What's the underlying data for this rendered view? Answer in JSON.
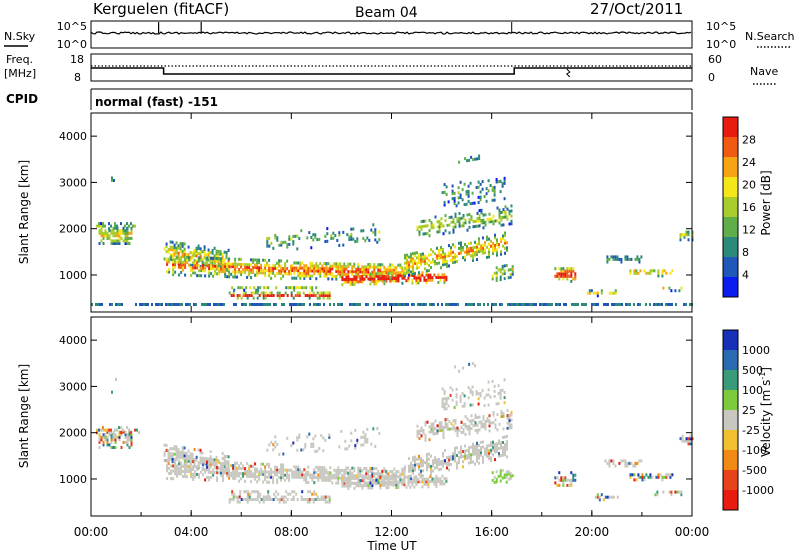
{
  "header": {
    "site": "Kerguelen (fitACF)",
    "beam": "Beam 04",
    "date": "27/Oct/2011"
  },
  "status_panels": {
    "nsky_label": "N.Sky",
    "nsky_ticks": [
      "10^5",
      "10^0"
    ],
    "nsearch_label": "N.Search",
    "nsearch_ticks": [
      "10^5",
      "10^0"
    ],
    "freq_label_1": "Freq.",
    "freq_label_2": "[MHz]",
    "freq_ticks": [
      "18",
      "8"
    ],
    "nave_label": "Nave",
    "nave_ticks": [
      "60",
      "0"
    ],
    "cpid_label": "CPID",
    "cpid_value": "normal (fast) -151"
  },
  "chart_data": [
    {
      "type": "heatmap",
      "name": "power",
      "ylabel": "Slant Range [km]",
      "y_ticks": [
        "1000",
        "2000",
        "3000",
        "4000"
      ],
      "ylim": [
        200,
        4500
      ],
      "xlim_hours": [
        0,
        24
      ],
      "colorbar_label": "Power [dB]",
      "colorbar_ticks": [
        "4",
        "8",
        "12",
        "16",
        "20",
        "24",
        "28"
      ],
      "colors": [
        "#0a1cf0",
        "#1f58b8",
        "#2d8a7a",
        "#5fae4a",
        "#a8cc2c",
        "#f5e61a",
        "#f6a414",
        "#f05a12",
        "#e81b10"
      ]
    },
    {
      "type": "heatmap",
      "name": "velocity",
      "ylabel": "Slant Range [km]",
      "y_ticks": [
        "1000",
        "2000",
        "3000",
        "4000"
      ],
      "ylim": [
        200,
        4500
      ],
      "xlim_hours": [
        0,
        24
      ],
      "colorbar_label": "Velocity [m s^-1]",
      "colorbar_ticks": [
        "1000",
        "500",
        "100",
        "25",
        "-25",
        "-100",
        "-500",
        "-1000"
      ],
      "colors": [
        "#1830b8",
        "#2a6ab0",
        "#3a9a7a",
        "#7ccb3c",
        "#c8c8c0",
        "#f0c030",
        "#f08a14",
        "#e8421a",
        "#e81b10"
      ]
    }
  ],
  "x_axis": {
    "ticks": [
      "00:00",
      "04:00",
      "08:00",
      "12:00",
      "16:00",
      "20:00",
      "00:00"
    ],
    "label": "Time UT"
  }
}
